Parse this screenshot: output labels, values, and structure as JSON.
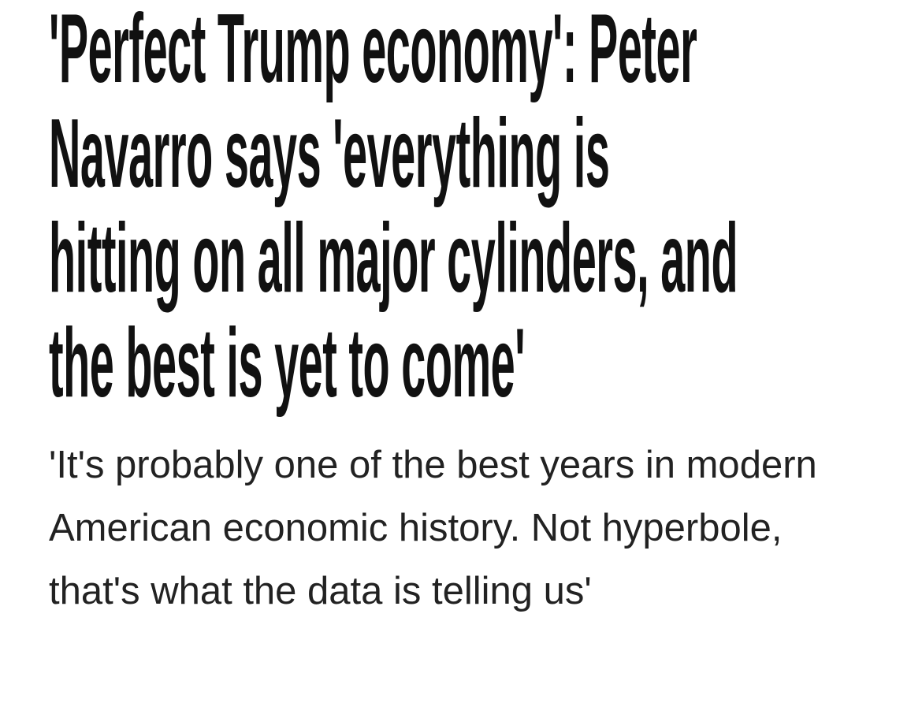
{
  "article": {
    "headline_lines": [
      "'Perfect Trump economy': Peter",
      "Navarro says 'everything is",
      "hitting on all major cylinders, and",
      "the best is yet to come'"
    ],
    "subtitle": "'It's probably one of the best years in modern American economic history. Not hyperbole, that's what the data is telling us'"
  }
}
